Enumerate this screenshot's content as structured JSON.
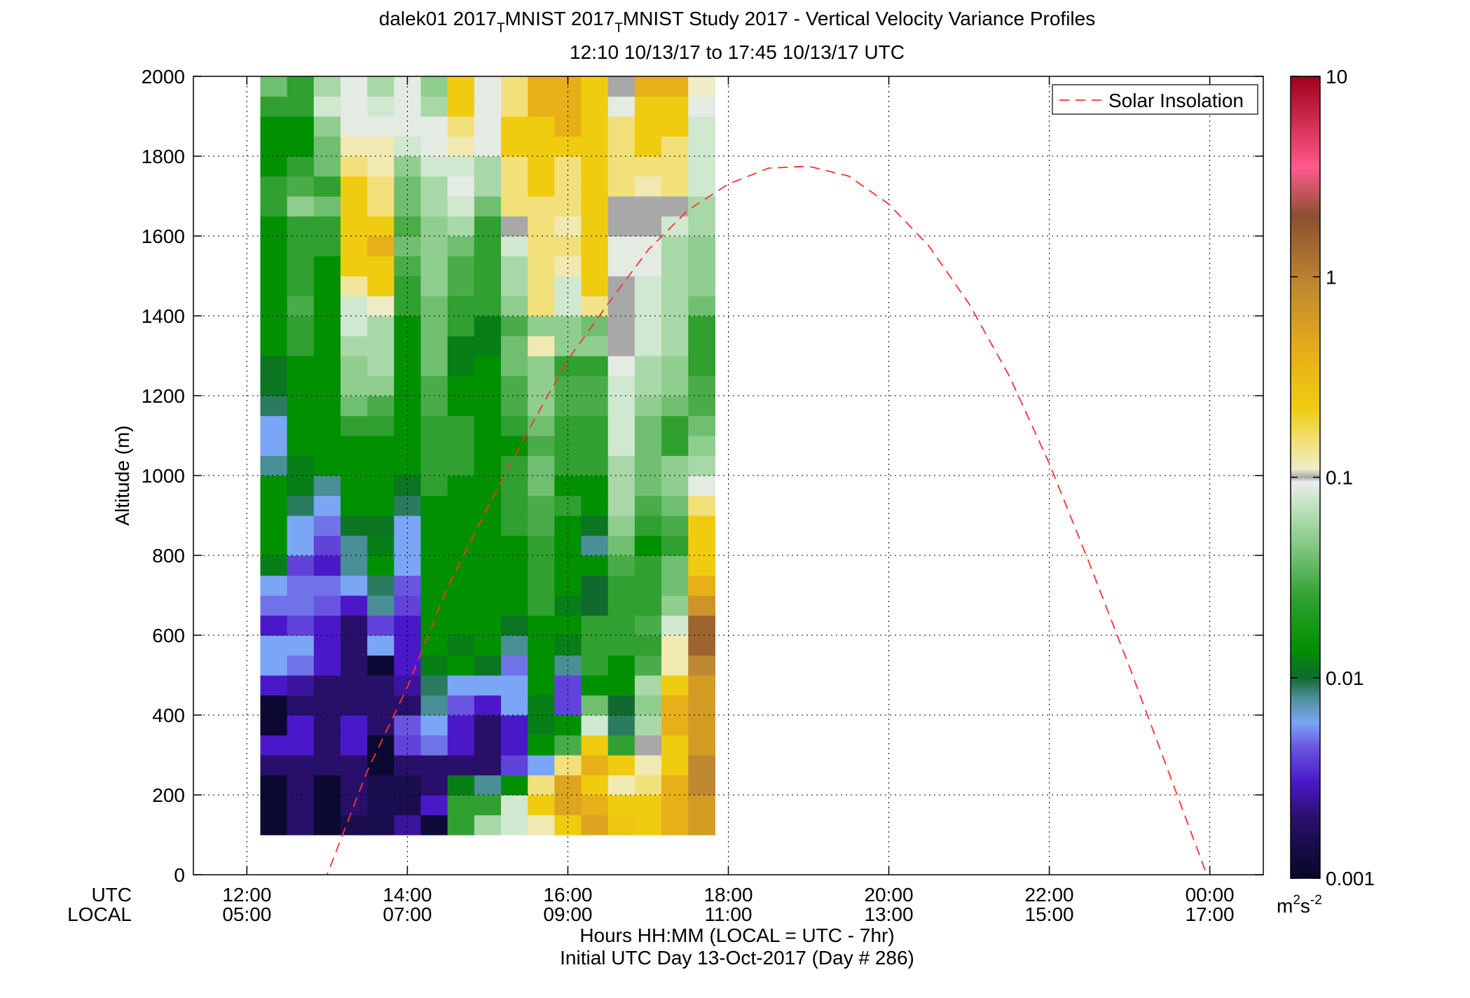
{
  "chart_data": {
    "type": "heatmap",
    "title": {
      "line1_a": "dalek01 2017",
      "sub1": "T",
      "line1_b": "MNIST 2017",
      "sub2": "T",
      "line1_c": "MNIST Study 2017 - Vertical Velocity Variance Profiles",
      "line2": "12:10 10/13/17 to 17:45 10/13/17  UTC"
    },
    "ylabel": "Altitude (m)",
    "xlabel_line1": "Hours HH:MM  (LOCAL = UTC - 7hr)",
    "xlabel_line2": "Initial UTC Day 13-Oct-2017 (Day # 286)",
    "x_row_labels": [
      "UTC",
      "LOCAL"
    ],
    "xlim_hours": [
      11.333,
      24.667
    ],
    "ylim": [
      0,
      2000
    ],
    "grid": true,
    "x_ticks": [
      {
        "hour": 12,
        "utc": "12:00",
        "local": "05:00"
      },
      {
        "hour": 14,
        "utc": "14:00",
        "local": "07:00"
      },
      {
        "hour": 16,
        "utc": "16:00",
        "local": "09:00"
      },
      {
        "hour": 18,
        "utc": "18:00",
        "local": "11:00"
      },
      {
        "hour": 20,
        "utc": "20:00",
        "local": "13:00"
      },
      {
        "hour": 22,
        "utc": "22:00",
        "local": "15:00"
      },
      {
        "hour": 24,
        "utc": "00:00",
        "local": "17:00"
      }
    ],
    "y_ticks": [
      {
        "value": 0,
        "label": "0"
      },
      {
        "value": 200,
        "label": "200"
      },
      {
        "value": 400,
        "label": "400"
      },
      {
        "value": 600,
        "label": "600"
      },
      {
        "value": 800,
        "label": "800"
      },
      {
        "value": 1000,
        "label": "1000"
      },
      {
        "value": 1200,
        "label": "1200"
      },
      {
        "value": 1400,
        "label": "1400"
      },
      {
        "value": 1600,
        "label": "1600"
      },
      {
        "value": 1800,
        "label": "1800"
      },
      {
        "value": 2000,
        "label": "2000"
      }
    ],
    "colorbar": {
      "scale": "log",
      "range": [
        0.001,
        10
      ],
      "ticks": [
        {
          "value": 0.001,
          "label": "0.001"
        },
        {
          "value": 0.01,
          "label": "0.01"
        },
        {
          "value": 0.1,
          "label": "0.1"
        },
        {
          "value": 1,
          "label": "1"
        },
        {
          "value": 10,
          "label": "10"
        }
      ],
      "units_base": "m",
      "units_exp1": "2",
      "units_mid": "s",
      "units_exp2": "-2",
      "stops": [
        {
          "v": 0.001,
          "color": "#060828"
        },
        {
          "v": 0.002,
          "color": "#28106a"
        },
        {
          "v": 0.003,
          "color": "#4a18c8"
        },
        {
          "v": 0.0045,
          "color": "#6a55e0"
        },
        {
          "v": 0.006,
          "color": "#7aa6f5"
        },
        {
          "v": 0.008,
          "color": "#4a8e96"
        },
        {
          "v": 0.01,
          "color": "#106a30"
        },
        {
          "v": 0.014,
          "color": "#009000"
        },
        {
          "v": 0.025,
          "color": "#30a030"
        },
        {
          "v": 0.05,
          "color": "#8fce8f"
        },
        {
          "v": 0.08,
          "color": "#cfe8cf"
        },
        {
          "v": 0.095,
          "color": "#ececec"
        },
        {
          "v": 0.1,
          "color": "#a8a8a8"
        },
        {
          "v": 0.11,
          "color": "#f0ecc8"
        },
        {
          "v": 0.15,
          "color": "#f2e07a"
        },
        {
          "v": 0.22,
          "color": "#f0cc10"
        },
        {
          "v": 0.4,
          "color": "#e8b018"
        },
        {
          "v": 0.9,
          "color": "#c08830"
        },
        {
          "v": 2.0,
          "color": "#8a5030"
        },
        {
          "v": 3.5,
          "color": "#ff5a8c"
        },
        {
          "v": 10,
          "color": "#a00018"
        }
      ]
    },
    "grid_cells": {
      "x_start_hour": 12.167,
      "x_step_hours": 0.3333,
      "y_start_m": 100,
      "y_step_m": 50,
      "rows_bottom_to_top": [
        [
          0.0011,
          0.002,
          0.0011,
          0.0015,
          0.0015,
          0.0025,
          0.0012,
          0.025,
          0.06,
          0.08,
          0.12,
          0.22,
          0.5,
          0.25,
          0.22,
          0.4,
          0.6
        ],
        [
          0.0011,
          0.002,
          0.0011,
          0.002,
          0.0015,
          0.0015,
          0.003,
          0.025,
          0.025,
          0.08,
          0.22,
          0.5,
          0.4,
          0.22,
          0.22,
          0.4,
          0.6
        ],
        [
          0.0011,
          0.002,
          0.0011,
          0.002,
          0.0015,
          0.0015,
          0.002,
          0.012,
          0.008,
          0.014,
          0.15,
          0.5,
          0.22,
          0.12,
          0.15,
          0.4,
          0.9
        ],
        [
          0.002,
          0.002,
          0.002,
          0.002,
          0.0011,
          0.002,
          0.002,
          0.002,
          0.002,
          0.004,
          0.006,
          0.15,
          0.4,
          0.22,
          0.12,
          0.22,
          0.9
        ],
        [
          0.003,
          0.003,
          0.002,
          0.003,
          0.0011,
          0.004,
          0.005,
          0.003,
          0.002,
          0.003,
          0.014,
          0.03,
          0.22,
          0.025,
          0.1,
          0.22,
          0.6
        ],
        [
          0.0011,
          0.003,
          0.002,
          0.003,
          0.002,
          0.0045,
          0.006,
          0.003,
          0.002,
          0.003,
          0.012,
          0.014,
          0.08,
          0.009,
          0.06,
          0.4,
          0.6
        ],
        [
          0.0011,
          0.002,
          0.002,
          0.002,
          0.002,
          0.002,
          0.008,
          0.0045,
          0.003,
          0.006,
          0.012,
          0.004,
          0.04,
          0.01,
          0.05,
          0.4,
          0.6
        ],
        [
          0.003,
          0.0025,
          0.002,
          0.002,
          0.002,
          0.0025,
          0.009,
          0.006,
          0.006,
          0.006,
          0.014,
          0.004,
          0.014,
          0.014,
          0.06,
          0.22,
          0.6
        ],
        [
          0.006,
          0.005,
          0.003,
          0.002,
          0.0011,
          0.003,
          0.012,
          0.014,
          0.011,
          0.005,
          0.014,
          0.008,
          0.025,
          0.014,
          0.03,
          0.12,
          0.9
        ],
        [
          0.006,
          0.006,
          0.003,
          0.002,
          0.006,
          0.003,
          0.014,
          0.012,
          0.014,
          0.008,
          0.014,
          0.012,
          0.025,
          0.025,
          0.025,
          0.12,
          1.5
        ],
        [
          0.003,
          0.004,
          0.003,
          0.002,
          0.004,
          0.003,
          0.014,
          0.014,
          0.014,
          0.011,
          0.014,
          0.014,
          0.025,
          0.025,
          0.03,
          0.08,
          1.5
        ],
        [
          0.005,
          0.005,
          0.0045,
          0.003,
          0.008,
          0.004,
          0.014,
          0.014,
          0.014,
          0.014,
          0.025,
          0.012,
          0.01,
          0.025,
          0.025,
          0.05,
          0.7
        ],
        [
          0.006,
          0.005,
          0.005,
          0.006,
          0.009,
          0.0045,
          0.014,
          0.014,
          0.014,
          0.014,
          0.025,
          0.014,
          0.01,
          0.025,
          0.025,
          0.04,
          0.4
        ],
        [
          0.012,
          0.004,
          0.003,
          0.008,
          0.014,
          0.006,
          0.014,
          0.014,
          0.014,
          0.014,
          0.025,
          0.014,
          0.014,
          0.03,
          0.025,
          0.04,
          0.22
        ],
        [
          0.014,
          0.006,
          0.004,
          0.008,
          0.012,
          0.006,
          0.014,
          0.014,
          0.014,
          0.014,
          0.025,
          0.014,
          0.008,
          0.04,
          0.014,
          0.025,
          0.22
        ],
        [
          0.014,
          0.006,
          0.005,
          0.011,
          0.011,
          0.006,
          0.014,
          0.014,
          0.014,
          0.025,
          0.03,
          0.014,
          0.011,
          0.05,
          0.025,
          0.03,
          0.22
        ],
        [
          0.014,
          0.009,
          0.006,
          0.014,
          0.014,
          0.009,
          0.014,
          0.014,
          0.014,
          0.025,
          0.03,
          0.025,
          0.014,
          0.06,
          0.03,
          0.04,
          0.15
        ],
        [
          0.014,
          0.012,
          0.008,
          0.014,
          0.014,
          0.011,
          0.025,
          0.014,
          0.014,
          0.025,
          0.04,
          0.014,
          0.014,
          0.06,
          0.04,
          0.05,
          0.09
        ],
        [
          0.008,
          0.012,
          0.014,
          0.014,
          0.014,
          0.014,
          0.025,
          0.025,
          0.014,
          0.025,
          0.04,
          0.025,
          0.025,
          0.06,
          0.04,
          0.05,
          0.06
        ],
        [
          0.006,
          0.014,
          0.014,
          0.014,
          0.014,
          0.014,
          0.025,
          0.025,
          0.014,
          0.014,
          0.03,
          0.025,
          0.025,
          0.08,
          0.04,
          0.025,
          0.05
        ],
        [
          0.006,
          0.014,
          0.014,
          0.025,
          0.025,
          0.014,
          0.025,
          0.025,
          0.014,
          0.025,
          0.04,
          0.025,
          0.025,
          0.08,
          0.04,
          0.025,
          0.04
        ],
        [
          0.009,
          0.014,
          0.014,
          0.04,
          0.03,
          0.014,
          0.03,
          0.014,
          0.014,
          0.03,
          0.05,
          0.03,
          0.03,
          0.08,
          0.05,
          0.04,
          0.03
        ],
        [
          0.011,
          0.014,
          0.014,
          0.05,
          0.05,
          0.014,
          0.03,
          0.014,
          0.014,
          0.03,
          0.05,
          0.03,
          0.03,
          0.08,
          0.06,
          0.05,
          0.03
        ],
        [
          0.011,
          0.014,
          0.014,
          0.05,
          0.06,
          0.014,
          0.04,
          0.012,
          0.014,
          0.04,
          0.05,
          0.025,
          0.025,
          0.09,
          0.06,
          0.05,
          0.025
        ],
        [
          0.014,
          0.025,
          0.014,
          0.06,
          0.06,
          0.014,
          0.04,
          0.012,
          0.012,
          0.04,
          0.12,
          0.05,
          0.05,
          0.1,
          0.08,
          0.06,
          0.025
        ],
        [
          0.014,
          0.025,
          0.014,
          0.08,
          0.06,
          0.014,
          0.04,
          0.025,
          0.012,
          0.03,
          0.05,
          0.05,
          0.04,
          0.1,
          0.08,
          0.06,
          0.025
        ],
        [
          0.014,
          0.03,
          0.014,
          0.08,
          0.11,
          0.025,
          0.04,
          0.025,
          0.025,
          0.05,
          0.15,
          0.08,
          0.14,
          0.1,
          0.08,
          0.06,
          0.04
        ],
        [
          0.014,
          0.025,
          0.014,
          0.13,
          0.22,
          0.025,
          0.05,
          0.03,
          0.025,
          0.06,
          0.15,
          0.08,
          0.22,
          0.1,
          0.08,
          0.06,
          0.05
        ],
        [
          0.014,
          0.025,
          0.014,
          0.22,
          0.22,
          0.03,
          0.05,
          0.03,
          0.025,
          0.06,
          0.15,
          0.12,
          0.22,
          0.09,
          0.09,
          0.06,
          0.05
        ],
        [
          0.014,
          0.025,
          0.025,
          0.22,
          0.4,
          0.04,
          0.05,
          0.04,
          0.025,
          0.08,
          0.15,
          0.15,
          0.22,
          0.09,
          0.09,
          0.06,
          0.05
        ],
        [
          0.014,
          0.025,
          0.025,
          0.22,
          0.22,
          0.03,
          0.05,
          0.06,
          0.025,
          0.1,
          0.15,
          0.12,
          0.22,
          0.1,
          0.1,
          0.08,
          0.06
        ],
        [
          0.025,
          0.05,
          0.04,
          0.22,
          0.15,
          0.04,
          0.06,
          0.08,
          0.04,
          0.15,
          0.15,
          0.15,
          0.22,
          0.1,
          0.1,
          0.1,
          0.06
        ],
        [
          0.025,
          0.03,
          0.025,
          0.22,
          0.15,
          0.04,
          0.06,
          0.09,
          0.06,
          0.15,
          0.22,
          0.15,
          0.22,
          0.15,
          0.12,
          0.15,
          0.08
        ],
        [
          0.014,
          0.025,
          0.04,
          0.15,
          0.12,
          0.05,
          0.08,
          0.08,
          0.06,
          0.15,
          0.22,
          0.15,
          0.22,
          0.15,
          0.15,
          0.15,
          0.08
        ],
        [
          0.014,
          0.014,
          0.04,
          0.12,
          0.12,
          0.08,
          0.09,
          0.12,
          0.09,
          0.22,
          0.22,
          0.22,
          0.22,
          0.15,
          0.22,
          0.15,
          0.08
        ],
        [
          0.014,
          0.014,
          0.05,
          0.09,
          0.09,
          0.09,
          0.09,
          0.15,
          0.09,
          0.22,
          0.22,
          0.4,
          0.22,
          0.15,
          0.22,
          0.22,
          0.08
        ],
        [
          0.025,
          0.025,
          0.08,
          0.09,
          0.08,
          0.09,
          0.06,
          0.22,
          0.09,
          0.15,
          0.4,
          0.4,
          0.22,
          0.09,
          0.22,
          0.22,
          0.09
        ],
        [
          0.04,
          0.025,
          0.06,
          0.09,
          0.06,
          0.09,
          0.05,
          0.22,
          0.09,
          0.15,
          0.4,
          0.4,
          0.22,
          0.1,
          0.4,
          0.4,
          0.11
        ],
        [
          0.04,
          0.05,
          0.06,
          0.09,
          0.08,
          0.1,
          0.08,
          0.22,
          0.09,
          0.15,
          0.4,
          0.4,
          0.22,
          0.12,
          0.4,
          0.4,
          0.12
        ],
        [
          0.05,
          0.05,
          0.08,
          0.09,
          0.06,
          0.12,
          0.22,
          0.1,
          0.22,
          0.22,
          0.22,
          0.22,
          0.22,
          0.15,
          0.22,
          0.22,
          0.1
        ]
      ]
    },
    "legend": {
      "label": "Solar Insolation",
      "placement": "top-right"
    },
    "solar_insolation_curve": {
      "x_hours": [
        12.5,
        13.0,
        13.5,
        14.0,
        14.5,
        15.0,
        15.5,
        16.0,
        16.5,
        17.0,
        17.5,
        18.0,
        18.5,
        19.0,
        19.5,
        20.0,
        20.5,
        21.0,
        21.5,
        22.0,
        22.5,
        23.0,
        23.5,
        24.0,
        24.4
      ],
      "y_m": [
        -150,
        0,
        260,
        470,
        720,
        920,
        1110,
        1290,
        1430,
        1565,
        1665,
        1730,
        1770,
        1775,
        1750,
        1680,
        1575,
        1430,
        1250,
        1030,
        780,
        520,
        250,
        -20,
        -220
      ]
    }
  }
}
